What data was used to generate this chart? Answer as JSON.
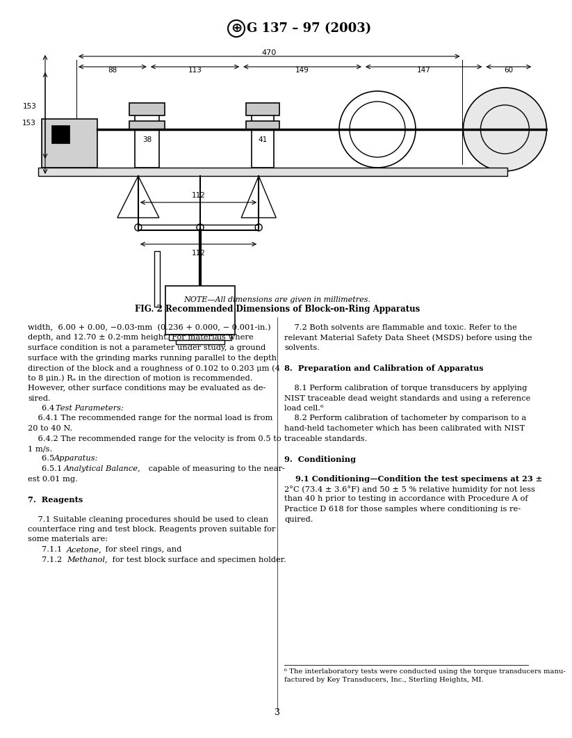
{
  "title": "G 137 – 97 (2003)",
  "fig_caption_note": "NOTE—All dimensions are given in millimetres.",
  "fig_caption_bold": "FIG. 2 Recommended Dimensions of Block-on-Ring Apparatus",
  "page_number": "3",
  "col1_text": [
    "width,  6.00 + 0.00, −0.03-mm  (0.236 + 0.000, − 0.001-in.)",
    "depth, and 12.70 ± 0.2-mm height. For materials where",
    "surface condition is not a parameter under study, a ground",
    "surface with the grinding marks running parallel to the depth",
    "direction of the block and a roughness of 0.102 to 0.203 μm (4",
    "to 8 μin.) Rₐ in the direction of motion is recommended.",
    "However, other surface conditions may be evaluated as de-",
    "sired.",
    "    6.4 Test Parameters:",
    "    6.4.1 The recommended range for the normal load is from",
    "20 to 40 N.",
    "    6.4.2 The recommended range for the velocity is from 0.5 to",
    "1 m/s.",
    "    6.5 Apparatus:",
    "    6.5.1 Analytical Balance, capable of measuring to the near-",
    "est 0.01 mg.",
    "",
    "7.  Reagents",
    "",
    "    7.1 Suitable cleaning procedures should be used to clean",
    "counterface ring and test block. Reagents proven suitable for",
    "some materials are:",
    "    7.1.1 Acetone, for steel rings, and",
    "    7.1.2 Methanol, for test block surface and specimen holder."
  ],
  "col2_text": [
    "    7.2 Both solvents are flammable and toxic. Refer to the",
    "relevant Material Safety Data Sheet (MSDS) before using the",
    "solvents.",
    "",
    "8.  Preparation and Calibration of Apparatus",
    "",
    "    8.1 Perform calibration of torque transducers by applying",
    "NIST traceable dead weight standards and using a reference",
    "load cell.⁶",
    "    8.2 Perform calibration of tachometer by comparison to a",
    "hand-held tachometer which has been calibrated with NIST",
    "traceable standards.",
    "",
    "9.  Conditioning",
    "",
    "    9.1 Conditioning—Condition the test specimens at 23 ±",
    "2°C (73.4 ± 3.6°F) and 50 ± 5 % relative humidity for not less",
    "than 40 h prior to testing in accordance with Procedure A of",
    "Practice D 618 for those samples where conditioning is re-",
    "quired."
  ],
  "footnote": "⁶ The interlaboratory tests were conducted using the torque transducers manu-\nfactured by Key Transducers, Inc., Sterling Heights, MI.",
  "bg_color": "#ffffff",
  "text_color": "#000000",
  "dim_470": "470",
  "dim_88": "88",
  "dim_113": "113",
  "dim_149": "149",
  "dim_147": "147",
  "dim_60": "60",
  "dim_38": "38",
  "dim_41": "41",
  "dim_153": "153",
  "dim_112a": "112",
  "dim_112b": "112"
}
